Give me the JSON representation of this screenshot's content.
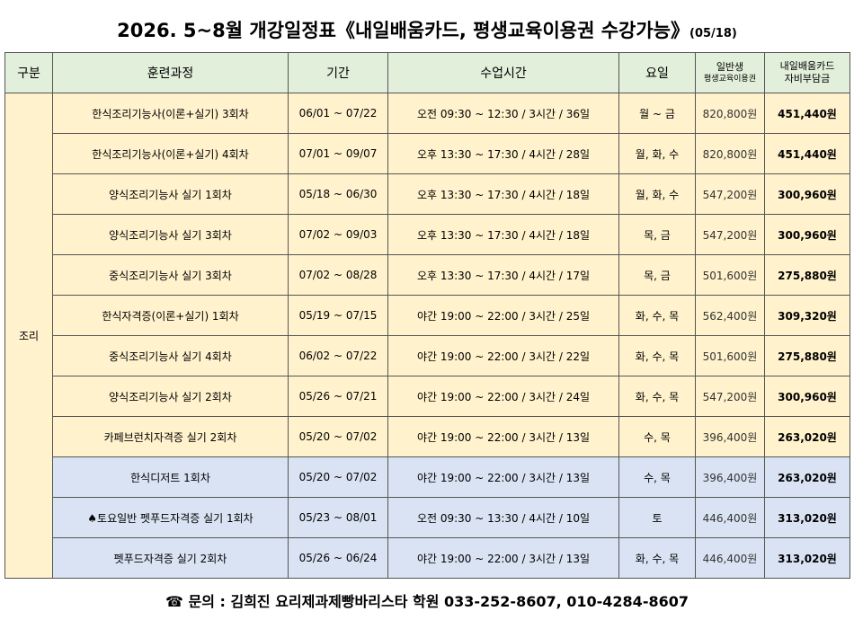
{
  "title": {
    "main": "2026. 5~8월 개강일정표《내일배움카드, 평생교육이용권 수강가능》",
    "date": "(05/18)"
  },
  "table": {
    "headers": [
      "구분",
      "훈련과정",
      "기간",
      "수업시간",
      "요일",
      [
        "일반생",
        "평생교육이용권"
      ],
      [
        "내일배움카드",
        "자비부담금"
      ]
    ],
    "group": "조리",
    "rows": [
      [
        "한식조리기능사(이론+실기) 3회차",
        "06/01 ~ 07/22",
        "오전 09:30 ~ 12:30 / 3시간 / 36일",
        "월 ~ 금",
        "820,800원",
        "451,440원"
      ],
      [
        "한식조리기능사(이론+실기) 4회차",
        "07/01 ~ 09/07",
        "오후 13:30 ~ 17:30 / 4시간 / 28일",
        "월, 화, 수",
        "820,800원",
        "451,440원"
      ],
      [
        "양식조리기능사 실기 1회차",
        "05/18 ~ 06/30",
        "오후 13:30 ~ 17:30 / 4시간 / 18일",
        "월, 화, 수",
        "547,200원",
        "300,960원"
      ],
      [
        "양식조리기능사 실기 3회차",
        "07/02 ~ 09/03",
        "오후 13:30 ~ 17:30 / 4시간 / 18일",
        "목, 금",
        "547,200원",
        "300,960원"
      ],
      [
        "중식조리기능사 실기 3회차",
        "07/02 ~ 08/28",
        "오후 13:30 ~ 17:30 / 4시간 / 17일",
        "목, 금",
        "501,600원",
        "275,880원"
      ],
      [
        "한식자격증(이론+실기) 1회차",
        "05/19 ~ 07/15",
        "야간 19:00 ~ 22:00 / 3시간 / 25일",
        "화, 수, 목",
        "562,400원",
        "309,320원"
      ],
      [
        "중식조리기능사 실기 4회차",
        "06/02 ~ 07/22",
        "야간 19:00 ~ 22:00 / 3시간 / 22일",
        "화, 수, 목",
        "501,600원",
        "275,880원"
      ],
      [
        "양식조리기능사 실기 2회차",
        "05/26 ~ 07/21",
        "야간 19:00 ~ 22:00 / 3시간 / 24일",
        "화, 수, 목",
        "547,200원",
        "300,960원"
      ],
      [
        "카페브런치자격증 실기 2회차",
        "05/20 ~ 07/02",
        "야간 19:00 ~ 22:00 / 3시간 / 13일",
        "수, 목",
        "396,400원",
        "263,020원"
      ],
      [
        "한식디저트 1회차",
        "05/20 ~ 07/02",
        "야간 19:00 ~ 22:00 / 3시간 / 13일",
        "수, 목",
        "396,400원",
        "263,020원"
      ],
      [
        "♠토요일반 펫푸드자격증 실기 1회차",
        "05/23 ~ 08/01",
        "오전 09:30 ~ 13:30 / 4시간 / 10일",
        "토",
        "446,400원",
        "313,020원"
      ],
      [
        "펫푸드자격증 실기 2회차",
        "05/26 ~ 06/24",
        "야간 19:00 ~ 22:00 / 3시간 / 13일",
        "화, 수, 목",
        "446,400원",
        "313,020원"
      ]
    ]
  },
  "footer": "☎ 문의 : 김희진 요리제과제빵바리스타 학원 033-252-8607, 010-4284-8607"
}
